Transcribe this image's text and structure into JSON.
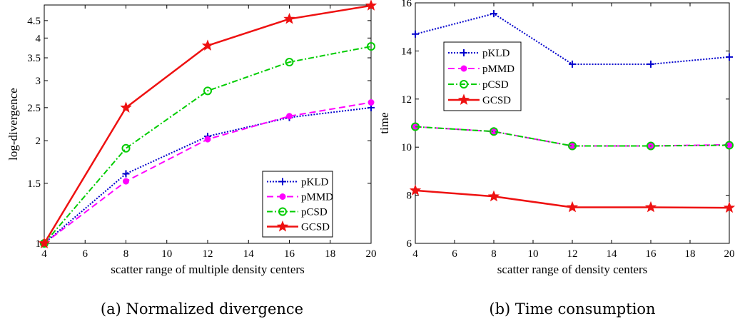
{
  "captions": {
    "a": "(a) Normalized divergence",
    "b": "(b) Time consumption"
  },
  "chart_data": [
    {
      "type": "line",
      "title": "",
      "xlabel": "scatter range of multiple density centers",
      "ylabel": "log-divergence",
      "yscale": "log",
      "x": [
        4,
        8,
        12,
        16,
        20
      ],
      "xlim": [
        4,
        20
      ],
      "ylim": [
        1,
        5
      ],
      "xticks": [
        "4",
        "6",
        "8",
        "10",
        "12",
        "14",
        "16",
        "18",
        "20"
      ],
      "xtick_values": [
        4,
        6,
        8,
        10,
        12,
        14,
        16,
        18,
        20
      ],
      "yticks": [
        "1",
        "1.5",
        "2",
        "2.5",
        "3",
        "3.5",
        "4",
        "4.5"
      ],
      "ytick_values": [
        1,
        1.5,
        2,
        2.5,
        3,
        3.5,
        4,
        4.5
      ],
      "legend_position": "bottom-right",
      "grid": false,
      "series": [
        {
          "name": "pKLD",
          "color": "#0000cc",
          "values": [
            1.0,
            1.6,
            2.06,
            2.34,
            2.5
          ]
        },
        {
          "name": "pMMD",
          "color": "#ff00ff",
          "values": [
            1.0,
            1.52,
            2.02,
            2.36,
            2.59
          ]
        },
        {
          "name": "pCSD",
          "color": "#00cc00",
          "values": [
            1.0,
            1.9,
            2.8,
            3.4,
            3.78
          ]
        },
        {
          "name": "GCSD",
          "color": "#ee1111",
          "values": [
            1.0,
            2.5,
            3.8,
            4.55,
            4.98
          ]
        }
      ]
    },
    {
      "type": "line",
      "title": "",
      "xlabel": "scatter range of density centers",
      "ylabel": "time",
      "x": [
        4,
        8,
        12,
        16,
        20
      ],
      "xlim": [
        4,
        20
      ],
      "ylim": [
        6,
        16
      ],
      "xticks": [
        "4",
        "6",
        "8",
        "10",
        "12",
        "14",
        "16",
        "18",
        "20"
      ],
      "xtick_values": [
        4,
        6,
        8,
        10,
        12,
        14,
        16,
        18,
        20
      ],
      "yticks": [
        "6",
        "8",
        "10",
        "12",
        "14",
        "16"
      ],
      "ytick_values": [
        6,
        8,
        10,
        12,
        14,
        16
      ],
      "legend_position": "top-left",
      "grid": false,
      "series": [
        {
          "name": "pKLD",
          "color": "#0000cc",
          "values": [
            14.7,
            15.55,
            13.45,
            13.45,
            13.75
          ]
        },
        {
          "name": "pMMD",
          "color": "#ff00ff",
          "values": [
            10.85,
            10.65,
            10.05,
            10.05,
            10.1
          ]
        },
        {
          "name": "pCSD",
          "color": "#00cc00",
          "values": [
            10.85,
            10.65,
            10.05,
            10.05,
            10.08
          ]
        },
        {
          "name": "GCSD",
          "color": "#ee1111",
          "values": [
            8.2,
            7.95,
            7.5,
            7.5,
            7.48
          ]
        }
      ]
    }
  ]
}
